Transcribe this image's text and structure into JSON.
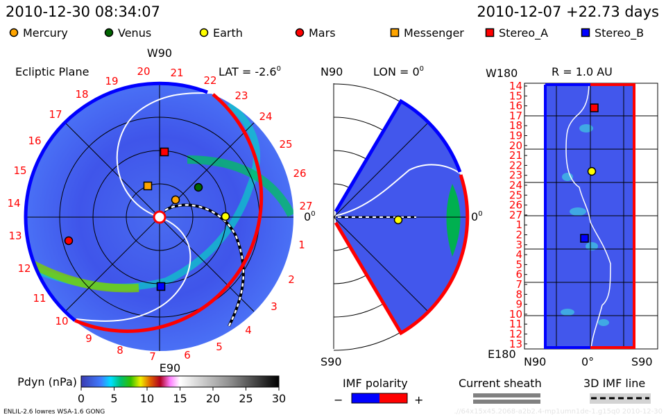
{
  "header": {
    "current_time": "2010-12-30 08:34:07",
    "reference": "2010-12-07 +22.73 days"
  },
  "legend": [
    {
      "label": "Mercury",
      "shape": "circle",
      "color": "#ffa500"
    },
    {
      "label": "Venus",
      "shape": "circle",
      "color": "#006400"
    },
    {
      "label": "Earth",
      "shape": "circle",
      "color": "#ffff00"
    },
    {
      "label": "Mars",
      "shape": "circle",
      "color": "#ff0000"
    },
    {
      "label": "Messenger",
      "shape": "square",
      "color": "#ffa500"
    },
    {
      "label": "Stereo_A",
      "shape": "square",
      "color": "#ff0000"
    },
    {
      "label": "Stereo_B",
      "shape": "square",
      "color": "#0000ff"
    }
  ],
  "ecliptic": {
    "title": "Ecliptic Plane",
    "top_label": "W90",
    "bottom_label": "E90",
    "right_label": "0",
    "right_label_sup": "0",
    "lat_label": "LAT = -2.6",
    "lat_sup": "0",
    "carrington_labels": [
      "27",
      "1",
      "2",
      "3",
      "4",
      "5",
      "6",
      "7",
      "8",
      "9",
      "10",
      "11",
      "12",
      "13",
      "14",
      "15",
      "16",
      "17",
      "18",
      "19",
      "20",
      "21",
      "22",
      "23",
      "24",
      "25",
      "26"
    ]
  },
  "meridional": {
    "top_label": "N90",
    "bottom_label": "S90",
    "lon_label": "LON = 0",
    "lon_sup": "0",
    "right_label": "0",
    "right_label_sup": "0"
  },
  "radial": {
    "title": "R = 1.0 AU",
    "top_label": "W180",
    "bottom_label": "E180",
    "x_labels": [
      "N90",
      "0°",
      "S90"
    ],
    "y_labels": [
      "14",
      "15",
      "16",
      "17",
      "18",
      "19",
      "20",
      "21",
      "22",
      "23",
      "24",
      "25",
      "26",
      "27",
      "1",
      "2",
      "3",
      "4",
      "5",
      "6",
      "7",
      "8",
      "9",
      "10",
      "11",
      "12",
      "13"
    ]
  },
  "colorbar": {
    "label": "Pdyn (nPa)",
    "ticks": [
      "0",
      "5",
      "10",
      "15",
      "20",
      "25",
      "30"
    ]
  },
  "imf_polarity": {
    "label": "IMF polarity",
    "minus": "−",
    "plus": "+",
    "neg_color": "#0000ff",
    "pos_color": "#ff0000"
  },
  "current_sheath": {
    "label": "Current sheath"
  },
  "imf_line": {
    "label": "3D IMF line"
  },
  "footer": {
    "model": "ENLIL-2.6 lowres WSA-1.6 GONG",
    "run_id": ".//64x15x45.2068-a2b2.4-mp1umn1de-1.g15q0   2010-12-30"
  },
  "chart_data": {
    "type": "heatmap",
    "quantity": "Pdyn (nPa)",
    "color_range": [
      0,
      30
    ],
    "colorbar_ticks": [
      0,
      5,
      10,
      15,
      20,
      25,
      30
    ],
    "panels": [
      "Ecliptic Plane",
      "LON = 0",
      "R = 1.0 AU"
    ],
    "bodies_shown": [
      "Mercury",
      "Venus",
      "Earth",
      "Mars",
      "Messenger",
      "Stereo_A",
      "Stereo_B"
    ]
  }
}
